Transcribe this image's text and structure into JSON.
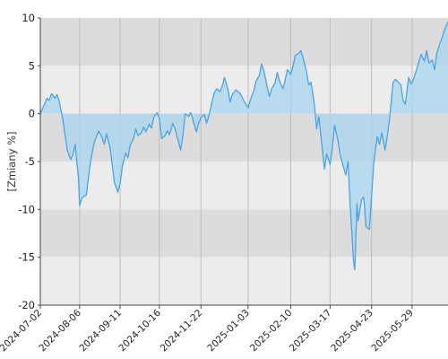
{
  "chart_data": {
    "type": "area",
    "ylabel": "[Zmiany %]",
    "ylim": [
      -20,
      10
    ],
    "yticks": [
      10,
      5,
      0,
      -5,
      -10,
      -15,
      -20
    ],
    "xticks": [
      "2024-07-02",
      "2024-08-06",
      "2024-09-11",
      "2024-10-16",
      "2024-11-22",
      "2025-01-03",
      "2025-02-10",
      "2025-03-17",
      "2025-04-23",
      "2025-05-29"
    ],
    "x_end": "2025-06-30",
    "grid": true,
    "colors": {
      "line": "#4aa3e6",
      "fill": "#a7d7ee",
      "band_dark": "#dcdcdc",
      "band_light": "#ececec",
      "gridline": "#bcbcbc",
      "axis": "#444444"
    },
    "series": [
      {
        "points": [
          [
            "2024-07-02",
            0.0
          ],
          [
            "2024-07-05",
            0.8
          ],
          [
            "2024-07-08",
            1.6
          ],
          [
            "2024-07-10",
            1.4
          ],
          [
            "2024-07-12",
            2.1
          ],
          [
            "2024-07-15",
            1.6
          ],
          [
            "2024-07-17",
            2.0
          ],
          [
            "2024-07-19",
            1.2
          ],
          [
            "2024-07-22",
            -0.6
          ],
          [
            "2024-07-24",
            -2.2
          ],
          [
            "2024-07-26",
            -3.8
          ],
          [
            "2024-07-29",
            -4.8
          ],
          [
            "2024-07-31",
            -4.3
          ],
          [
            "2024-08-02",
            -3.2
          ],
          [
            "2024-08-05",
            -6.8
          ],
          [
            "2024-08-06",
            -9.6
          ],
          [
            "2024-08-08",
            -8.8
          ],
          [
            "2024-08-12",
            -8.5
          ],
          [
            "2024-08-14",
            -6.5
          ],
          [
            "2024-08-16",
            -4.8
          ],
          [
            "2024-08-19",
            -3.0
          ],
          [
            "2024-08-21",
            -2.4
          ],
          [
            "2024-08-23",
            -1.8
          ],
          [
            "2024-08-26",
            -2.5
          ],
          [
            "2024-08-28",
            -3.2
          ],
          [
            "2024-08-30",
            -2.1
          ],
          [
            "2024-09-02",
            -3.5
          ],
          [
            "2024-09-04",
            -5.3
          ],
          [
            "2024-09-06",
            -7.2
          ],
          [
            "2024-09-09",
            -8.2
          ],
          [
            "2024-09-11",
            -7.4
          ],
          [
            "2024-09-13",
            -5.5
          ],
          [
            "2024-09-16",
            -4.1
          ],
          [
            "2024-09-18",
            -4.6
          ],
          [
            "2024-09-20",
            -3.3
          ],
          [
            "2024-09-23",
            -2.6
          ],
          [
            "2024-09-25",
            -1.6
          ],
          [
            "2024-09-27",
            -2.3
          ],
          [
            "2024-09-30",
            -2.0
          ],
          [
            "2024-10-02",
            -1.4
          ],
          [
            "2024-10-04",
            -1.9
          ],
          [
            "2024-10-07",
            -1.1
          ],
          [
            "2024-10-09",
            -1.5
          ],
          [
            "2024-10-11",
            -0.4
          ],
          [
            "2024-10-14",
            0.1
          ],
          [
            "2024-10-16",
            -0.5
          ],
          [
            "2024-10-18",
            -2.6
          ],
          [
            "2024-10-21",
            -2.3
          ],
          [
            "2024-10-23",
            -1.8
          ],
          [
            "2024-10-25",
            -2.2
          ],
          [
            "2024-10-28",
            -1.0
          ],
          [
            "2024-10-30",
            -1.6
          ],
          [
            "2024-11-01",
            -2.5
          ],
          [
            "2024-11-04",
            -3.8
          ],
          [
            "2024-11-06",
            -2.2
          ],
          [
            "2024-11-08",
            0.0
          ],
          [
            "2024-11-11",
            -0.3
          ],
          [
            "2024-11-13",
            0.1
          ],
          [
            "2024-11-15",
            -0.7
          ],
          [
            "2024-11-18",
            -1.9
          ],
          [
            "2024-11-20",
            -1.0
          ],
          [
            "2024-11-22",
            -0.4
          ],
          [
            "2024-11-25",
            -0.1
          ],
          [
            "2024-11-27",
            -1.0
          ],
          [
            "2024-11-29",
            -0.3
          ],
          [
            "2024-12-02",
            1.3
          ],
          [
            "2024-12-04",
            2.2
          ],
          [
            "2024-12-06",
            2.6
          ],
          [
            "2024-12-09",
            2.3
          ],
          [
            "2024-12-11",
            2.9
          ],
          [
            "2024-12-13",
            3.8
          ],
          [
            "2024-12-16",
            2.6
          ],
          [
            "2024-12-18",
            1.2
          ],
          [
            "2024-12-20",
            2.0
          ],
          [
            "2024-12-23",
            2.5
          ],
          [
            "2024-12-27",
            2.1
          ],
          [
            "2024-12-30",
            1.4
          ],
          [
            "2025-01-03",
            0.6
          ],
          [
            "2025-01-06",
            1.8
          ],
          [
            "2025-01-08",
            2.3
          ],
          [
            "2025-01-10",
            3.4
          ],
          [
            "2025-01-13",
            4.0
          ],
          [
            "2025-01-15",
            5.2
          ],
          [
            "2025-01-17",
            4.5
          ],
          [
            "2025-01-20",
            2.8
          ],
          [
            "2025-01-22",
            1.8
          ],
          [
            "2025-01-24",
            2.6
          ],
          [
            "2025-01-27",
            3.2
          ],
          [
            "2025-01-29",
            4.3
          ],
          [
            "2025-01-31",
            3.4
          ],
          [
            "2025-02-03",
            2.6
          ],
          [
            "2025-02-05",
            3.5
          ],
          [
            "2025-02-07",
            4.6
          ],
          [
            "2025-02-10",
            4.1
          ],
          [
            "2025-02-12",
            5.0
          ],
          [
            "2025-02-14",
            6.1
          ],
          [
            "2025-02-17",
            6.3
          ],
          [
            "2025-02-19",
            6.6
          ],
          [
            "2025-02-21",
            5.8
          ],
          [
            "2025-02-24",
            4.4
          ],
          [
            "2025-02-26",
            3.0
          ],
          [
            "2025-02-28",
            3.3
          ],
          [
            "2025-03-03",
            1.0
          ],
          [
            "2025-03-05",
            -1.6
          ],
          [
            "2025-03-07",
            -0.3
          ],
          [
            "2025-03-10",
            -3.6
          ],
          [
            "2025-03-12",
            -5.8
          ],
          [
            "2025-03-14",
            -4.2
          ],
          [
            "2025-03-17",
            -5.3
          ],
          [
            "2025-03-19",
            -3.6
          ],
          [
            "2025-03-21",
            -1.2
          ],
          [
            "2025-03-24",
            -2.8
          ],
          [
            "2025-03-26",
            -4.3
          ],
          [
            "2025-03-28",
            -5.2
          ],
          [
            "2025-03-31",
            -6.4
          ],
          [
            "2025-04-02",
            -5.0
          ],
          [
            "2025-04-04",
            -9.8
          ],
          [
            "2025-04-07",
            -15.6
          ],
          [
            "2025-04-08",
            -16.3
          ],
          [
            "2025-04-10",
            -9.4
          ],
          [
            "2025-04-11",
            -11.2
          ],
          [
            "2025-04-14",
            -9.0
          ],
          [
            "2025-04-16",
            -8.7
          ],
          [
            "2025-04-18",
            -11.8
          ],
          [
            "2025-04-21",
            -12.1
          ],
          [
            "2025-04-23",
            -8.5
          ],
          [
            "2025-04-25",
            -5.0
          ],
          [
            "2025-04-28",
            -2.4
          ],
          [
            "2025-04-30",
            -3.2
          ],
          [
            "2025-05-02",
            -2.0
          ],
          [
            "2025-05-05",
            -3.8
          ],
          [
            "2025-05-07",
            -2.3
          ],
          [
            "2025-05-09",
            -0.5
          ],
          [
            "2025-05-12",
            3.2
          ],
          [
            "2025-05-14",
            3.6
          ],
          [
            "2025-05-16",
            3.4
          ],
          [
            "2025-05-19",
            3.0
          ],
          [
            "2025-05-21",
            1.4
          ],
          [
            "2025-05-23",
            1.0
          ],
          [
            "2025-05-26",
            3.8
          ],
          [
            "2025-05-28",
            3.1
          ],
          [
            "2025-05-30",
            3.5
          ],
          [
            "2025-06-02",
            4.6
          ],
          [
            "2025-06-04",
            5.4
          ],
          [
            "2025-06-06",
            6.2
          ],
          [
            "2025-06-09",
            5.5
          ],
          [
            "2025-06-11",
            6.6
          ],
          [
            "2025-06-13",
            5.3
          ],
          [
            "2025-06-16",
            5.6
          ],
          [
            "2025-06-18",
            4.6
          ],
          [
            "2025-06-20",
            6.3
          ],
          [
            "2025-06-23",
            7.4
          ],
          [
            "2025-06-25",
            8.0
          ],
          [
            "2025-06-27",
            8.8
          ],
          [
            "2025-06-30",
            9.6
          ]
        ]
      }
    ]
  }
}
